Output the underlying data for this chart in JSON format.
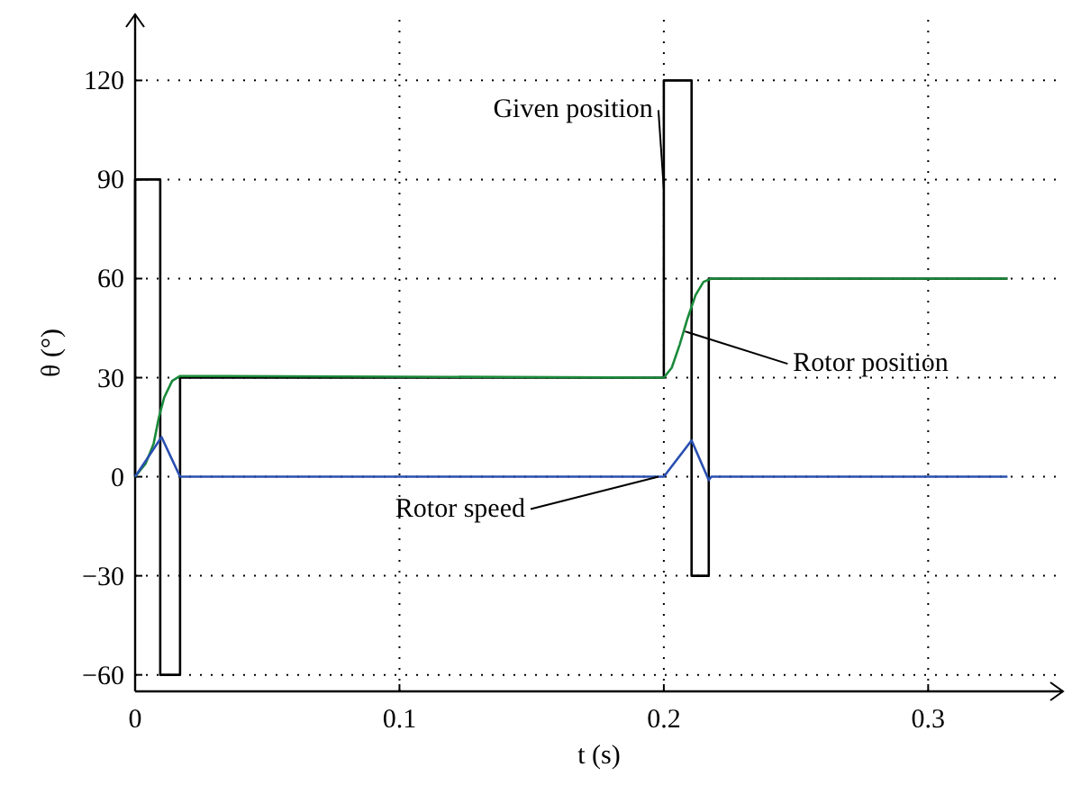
{
  "chart_data": {
    "type": "line",
    "xlabel": "t (s)",
    "ylabel": "θ (°)",
    "xlim": [
      0,
      0.351
    ],
    "ylim": [
      -65,
      140
    ],
    "xticks": [
      0,
      0.1,
      0.2,
      0.3
    ],
    "yticks": [
      {
        "value": -60,
        "label": "−60"
      },
      {
        "value": -30,
        "label": "−30"
      },
      0,
      30,
      60,
      90,
      120
    ],
    "grid": true,
    "marker": "none",
    "line_style": "solid",
    "series": [
      {
        "color": "#000000",
        "x": [
          0,
          0,
          0.0095,
          0.0095,
          0.017,
          0.017,
          0.2,
          0.2,
          0.2105,
          0.2105,
          0.217,
          0.217,
          0.33
        ],
        "values": [
          0,
          90,
          90,
          -60,
          -60,
          30,
          30,
          120,
          120,
          -30,
          -30,
          60,
          60
        ]
      },
      {
        "color": "#1a8a3a",
        "x": [
          0,
          0.004,
          0.007,
          0.009,
          0.011,
          0.014,
          0.017,
          0.03,
          0.2,
          0.203,
          0.206,
          0.209,
          0.212,
          0.215,
          0.218,
          0.33
        ],
        "values": [
          0,
          4,
          10,
          18,
          24,
          29,
          30.5,
          30.5,
          30,
          33,
          40,
          48,
          55,
          59,
          60,
          60
        ]
      },
      {
        "color": "#2a4fb0",
        "x": [
          0,
          0.01,
          0.017,
          0.2,
          0.2105,
          0.217,
          0.218,
          0.33
        ],
        "values": [
          0,
          12,
          0,
          0,
          11,
          -1,
          0,
          0
        ]
      }
    ],
    "annotations": [
      {
        "text": "Given position",
        "x": 0.2,
        "y": 87
      },
      {
        "text": "Rotor position",
        "x": 0.208,
        "y": 44
      },
      {
        "text": "Rotor speed",
        "x": 0.198,
        "y": 0
      }
    ]
  }
}
